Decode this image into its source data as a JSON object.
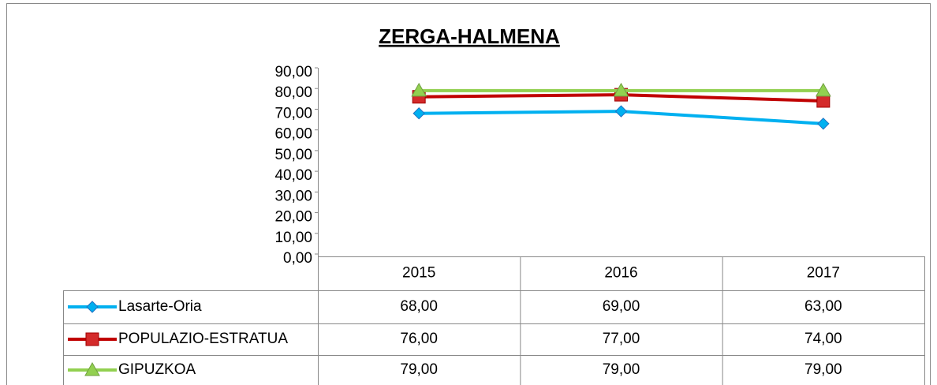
{
  "chart_data": {
    "type": "line",
    "title": "ZERGA-HALMENA",
    "categories": [
      "2015",
      "2016",
      "2017"
    ],
    "series": [
      {
        "name": "Lasarte-Oria",
        "color": "#00b0f0",
        "marker": "diamond",
        "values": [
          68,
          69,
          63
        ],
        "value_labels": [
          "68,00",
          "69,00",
          "63,00"
        ]
      },
      {
        "name": "POPULAZIO-ESTRATUA",
        "color": "#c00000",
        "marker": "square",
        "values": [
          76,
          77,
          74
        ],
        "value_labels": [
          "76,00",
          "77,00",
          "74,00"
        ]
      },
      {
        "name": "GIPUZKOA",
        "color": "#92d050",
        "marker": "triangle",
        "values": [
          79,
          79,
          79
        ],
        "value_labels": [
          "79,00",
          "79,00",
          "79,00"
        ]
      }
    ],
    "ylim": [
      0,
      90
    ],
    "yticks": [
      {
        "value": 0,
        "label": "0,00"
      },
      {
        "value": 10,
        "label": "10,00"
      },
      {
        "value": 20,
        "label": "20,00"
      },
      {
        "value": 30,
        "label": "30,00"
      },
      {
        "value": 40,
        "label": "40,00"
      },
      {
        "value": 50,
        "label": "50,00"
      },
      {
        "value": 60,
        "label": "60,00"
      },
      {
        "value": 70,
        "label": "70,00"
      },
      {
        "value": 80,
        "label": "80,00"
      },
      {
        "value": 90,
        "label": "90,00"
      }
    ],
    "grid": false,
    "data_table": true
  }
}
